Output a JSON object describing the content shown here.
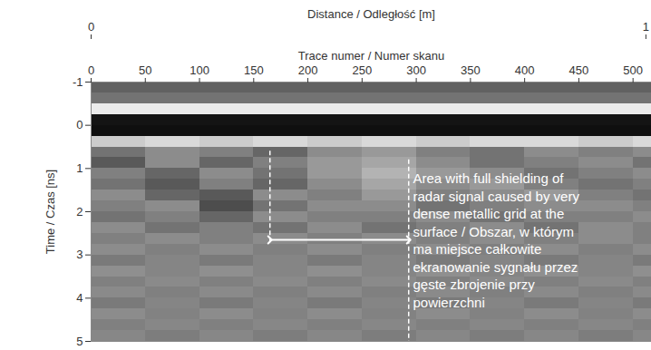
{
  "chart_data": {
    "type": "heatmap",
    "x_label": "Trace numer / Numer skanu",
    "xlim": [
      0,
      517
    ],
    "xticks": [
      0,
      50,
      100,
      150,
      200,
      250,
      300,
      350,
      400,
      450,
      500
    ],
    "x2_label": "Distance / Odległość [m]",
    "x2lim": [
      0,
      1.01
    ],
    "x2ticks": [
      0,
      1
    ],
    "y_label": "Time / Czas [ns]",
    "ylim": [
      -1,
      5
    ],
    "yticks": [
      -1,
      0,
      1,
      2,
      3,
      4,
      5
    ],
    "colors": [
      "#000000",
      "#ffffff"
    ],
    "zlim": [
      0,
      100
    ],
    "cells": {
      "x_edges": [
        0,
        50,
        100,
        150,
        200,
        250,
        300,
        350,
        400,
        450,
        500,
        517
      ],
      "y_edges": [
        -1,
        -0.75,
        -0.5,
        -0.25,
        0,
        0.25,
        0.5,
        0.75,
        1,
        1.25,
        1.5,
        1.75,
        2,
        2.25,
        2.5,
        2.75,
        3,
        3.25,
        3.5,
        3.75,
        4,
        4.25,
        4.5,
        4.75,
        5
      ],
      "values": [
        [
          38,
          38,
          38,
          38,
          38,
          38,
          38,
          38,
          38,
          38,
          38
        ],
        [
          45,
          45,
          45,
          45,
          45,
          45,
          45,
          45,
          45,
          45,
          45
        ],
        [
          92,
          92,
          92,
          92,
          92,
          92,
          92,
          92,
          92,
          92,
          92
        ],
        [
          8,
          8,
          8,
          8,
          8,
          8,
          8,
          8,
          8,
          8,
          8
        ],
        [
          6,
          6,
          6,
          6,
          6,
          6,
          6,
          6,
          6,
          6,
          6
        ],
        [
          80,
          85,
          80,
          85,
          80,
          85,
          80,
          85,
          85,
          80,
          85
        ],
        [
          45,
          55,
          50,
          40,
          55,
          60,
          50,
          45,
          55,
          50,
          55
        ],
        [
          35,
          55,
          40,
          50,
          60,
          65,
          55,
          45,
          50,
          55,
          45
        ],
        [
          50,
          40,
          55,
          45,
          60,
          70,
          60,
          55,
          45,
          50,
          55
        ],
        [
          45,
          35,
          50,
          40,
          55,
          65,
          55,
          60,
          50,
          45,
          50
        ],
        [
          55,
          40,
          35,
          55,
          50,
          60,
          50,
          55,
          60,
          50,
          45
        ],
        [
          50,
          55,
          30,
          45,
          55,
          55,
          45,
          50,
          55,
          55,
          50
        ],
        [
          45,
          50,
          40,
          55,
          50,
          50,
          55,
          45,
          50,
          50,
          55
        ],
        [
          55,
          45,
          50,
          45,
          55,
          45,
          50,
          55,
          45,
          55,
          50
        ],
        [
          50,
          55,
          50,
          55,
          50,
          55,
          50,
          55,
          50,
          55,
          50
        ],
        [
          55,
          50,
          55,
          50,
          55,
          50,
          55,
          50,
          55,
          50,
          55
        ],
        [
          48,
          52,
          48,
          52,
          48,
          52,
          48,
          52,
          48,
          52,
          48
        ],
        [
          56,
          52,
          56,
          52,
          56,
          52,
          56,
          52,
          56,
          52,
          56
        ],
        [
          50,
          54,
          50,
          54,
          50,
          54,
          50,
          54,
          50,
          54,
          50
        ],
        [
          54,
          50,
          54,
          50,
          54,
          50,
          54,
          50,
          54,
          50,
          54
        ],
        [
          48,
          52,
          48,
          52,
          48,
          52,
          48,
          52,
          48,
          52,
          48
        ],
        [
          55,
          51,
          55,
          51,
          55,
          51,
          55,
          51,
          55,
          51,
          55
        ],
        [
          50,
          53,
          50,
          53,
          50,
          53,
          50,
          53,
          50,
          53,
          50
        ],
        [
          53,
          49,
          53,
          49,
          53,
          49,
          53,
          49,
          53,
          49,
          53
        ]
      ]
    },
    "annotations": {
      "lines": [
        {
          "x": 165,
          "y1": 0.6,
          "y2": 2.75,
          "line_style": "dashed",
          "color": "#ffffff"
        },
        {
          "x": 293,
          "y1": 0.8,
          "y2": 5,
          "line_style": "dashed",
          "color": "#ffffff"
        }
      ],
      "arrow": {
        "x1": 165,
        "x2": 293,
        "y": 2.65,
        "color": "#ffffff"
      },
      "text": {
        "x": 297,
        "y": 1.05,
        "color": "#ffffff",
        "text": "Area with full shielding of\nradar signal caused by very\ndense metallic grid at the\nsurface / Obszar, w którym\nma miejsce całkowite\nekranowanie sygnału przez\ngęste zbrojenie przy\npowierzchni"
      }
    }
  }
}
